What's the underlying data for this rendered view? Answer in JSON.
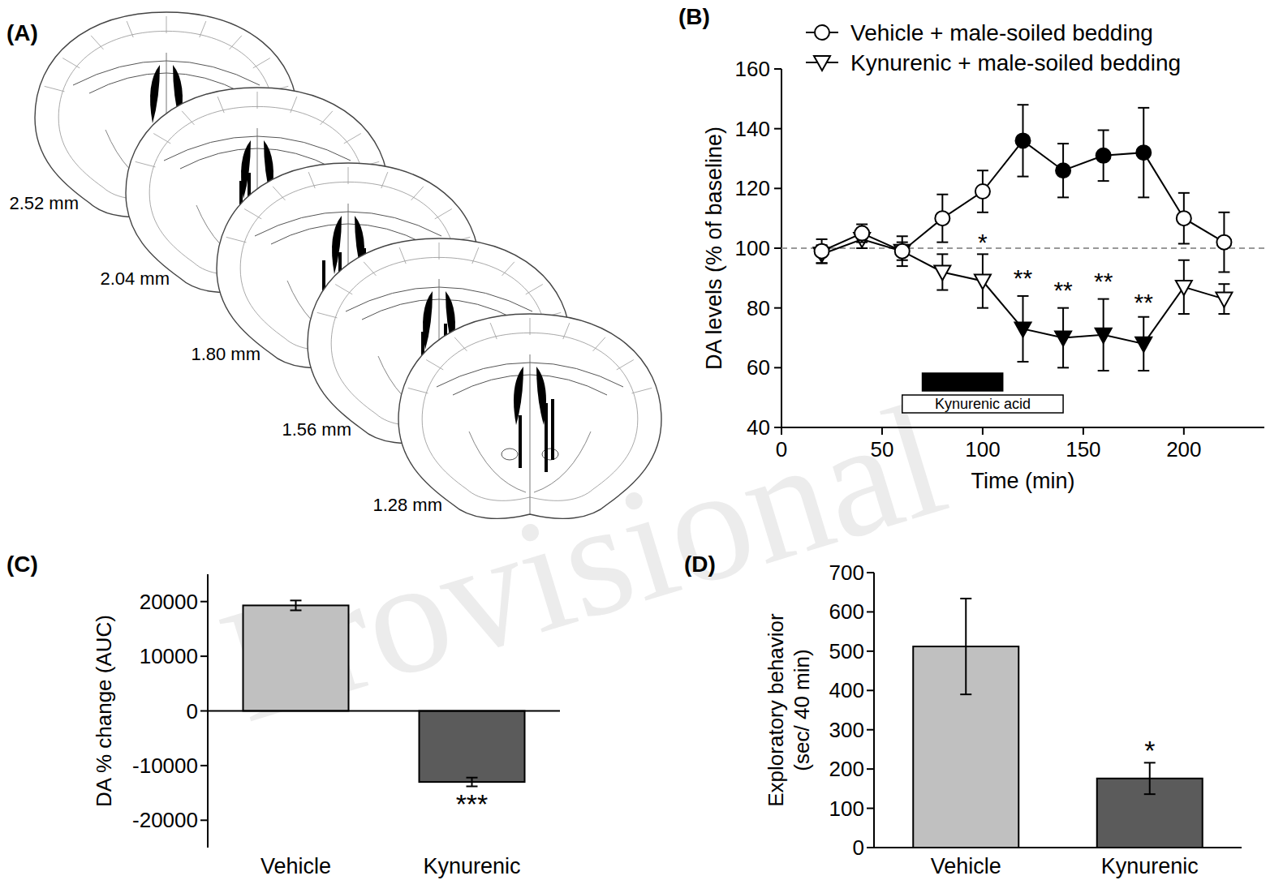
{
  "figure_text": {
    "watermark": "Provisional"
  },
  "diagram": {
    "panel_label": "(A)",
    "sections": [
      {
        "label": "2.52 mm"
      },
      {
        "label": "2.04 mm"
      },
      {
        "label": "1.80 mm"
      },
      {
        "label": "1.56 mm"
      },
      {
        "label": "1.28 mm"
      }
    ]
  },
  "chart_data": [
    {
      "type": "line",
      "panel_label": "(B)",
      "x_label": "Time (min)",
      "y_label": "DA levels (% of baseline)",
      "x": [
        20,
        40,
        60,
        80,
        100,
        120,
        140,
        160,
        180,
        200,
        220
      ],
      "xlim": [
        0,
        240
      ],
      "xticks": [
        0,
        50,
        100,
        150,
        200
      ],
      "ylim": [
        40,
        160
      ],
      "yticks": [
        40,
        60,
        80,
        100,
        120,
        140,
        160
      ],
      "legend": "top",
      "baseline": 100,
      "series": [
        {
          "name": "Vehicle + male-soiled bedding",
          "color": "#000000",
          "marker": "circle",
          "values": [
            99,
            105,
            99,
            110,
            119,
            136,
            126,
            131,
            132,
            110,
            102
          ],
          "errors": [
            4,
            3,
            5,
            8,
            7,
            12,
            9,
            8.5,
            15,
            8.5,
            10
          ],
          "significant": [
            false,
            false,
            false,
            false,
            false,
            true,
            true,
            true,
            true,
            false,
            false
          ]
        },
        {
          "name": "Kynurenic + male-soiled bedding",
          "color": "#000000",
          "marker": "triangle-down",
          "values": [
            98,
            103,
            99,
            92,
            89,
            73,
            70,
            71,
            68,
            87,
            83
          ],
          "errors": [
            3,
            3,
            3,
            6,
            9,
            11,
            10,
            12,
            9,
            9,
            5
          ],
          "significant": [
            false,
            false,
            false,
            false,
            false,
            true,
            true,
            true,
            true,
            false,
            false
          ]
        }
      ],
      "periods": [
        {
          "start": 70,
          "end": 110,
          "color": "#000000"
        },
        {
          "start": 60,
          "end": 140,
          "label": "Kynurenic acid",
          "color": "#ffffff"
        }
      ],
      "annotations": [
        {
          "x": 100,
          "y": 102,
          "text": "*"
        },
        {
          "x": 120,
          "y": 90,
          "text": "**"
        },
        {
          "x": 140,
          "y": 86,
          "text": "**"
        },
        {
          "x": 160,
          "y": 89,
          "text": "**"
        },
        {
          "x": 180,
          "y": 82,
          "text": "**"
        }
      ]
    },
    {
      "type": "bar",
      "panel_label": "(C)",
      "y_label": "DA % change (AUC)",
      "categories": [
        "Vehicle",
        "Kynurenic"
      ],
      "values": [
        19300,
        -13000
      ],
      "errors": [
        900,
        800
      ],
      "colors": [
        "#c0c0c0",
        "#5b5b5b"
      ],
      "ylim": [
        -25000,
        25000
      ],
      "yticks": [
        -20000,
        -10000,
        0,
        10000,
        20000
      ],
      "annotations": [
        {
          "category": "Kynurenic",
          "y": -17000,
          "text": "***"
        }
      ]
    },
    {
      "type": "bar",
      "panel_label": "(D)",
      "y_label": [
        "Exploratory behavior",
        "(sec/ 40 min)"
      ],
      "categories": [
        "Vehicle",
        "Kynurenic"
      ],
      "values": [
        512,
        176
      ],
      "errors": [
        122,
        40
      ],
      "colors": [
        "#c0c0c0",
        "#5b5b5b"
      ],
      "ylim": [
        0,
        700
      ],
      "yticks": [
        0,
        100,
        200,
        300,
        400,
        500,
        600,
        700
      ],
      "annotations": [
        {
          "category": "Kynurenic",
          "y": 248,
          "text": "*"
        }
      ]
    }
  ]
}
